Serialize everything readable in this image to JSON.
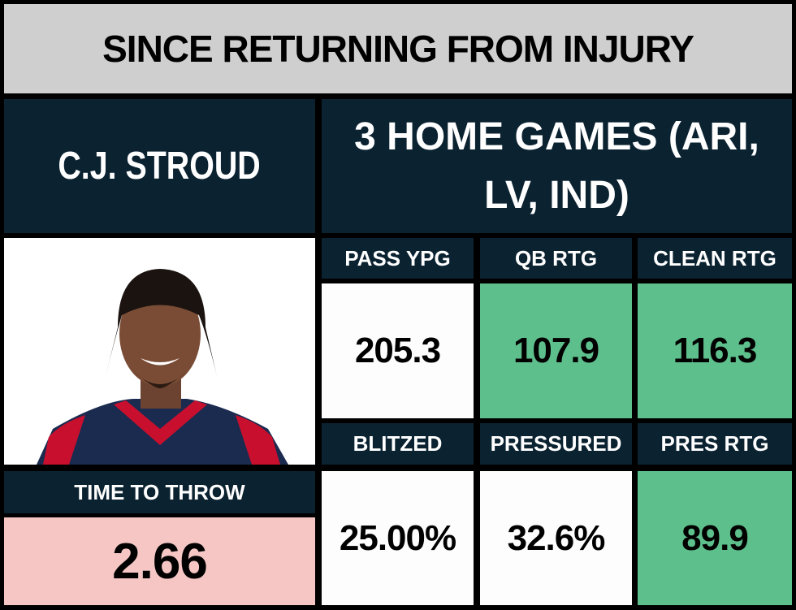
{
  "header": {
    "title": "SINCE RETURNING FROM INJURY"
  },
  "player": {
    "name": "C.J. STROUD",
    "games": "3 HOME GAMES (ARI, LV, IND)"
  },
  "time_to_throw": {
    "label": "TIME TO THROW",
    "value": "2.66",
    "color": "#f5c6c4"
  },
  "stats": [
    {
      "label": "PASS YPG",
      "value": "205.3",
      "color": "#fdfdfd"
    },
    {
      "label": "QB RTG",
      "value": "107.9",
      "color": "#5dbf8c"
    },
    {
      "label": "CLEAN RTG",
      "value": "116.3",
      "color": "#5dbf8c"
    },
    {
      "label": "BLITZED",
      "value": "25.00%",
      "color": "#fdfdfd"
    },
    {
      "label": "PRESSURED",
      "value": "32.6%",
      "color": "#fdfdfd"
    },
    {
      "label": "PRES RTG",
      "value": "89.9",
      "color": "#5dbf8c"
    }
  ]
}
